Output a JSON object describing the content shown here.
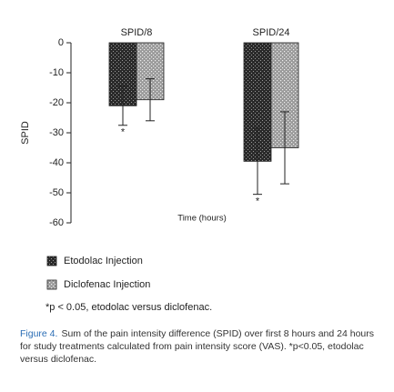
{
  "chart_data": {
    "type": "bar",
    "categories": [
      "SPID/8",
      "SPID/24"
    ],
    "series": [
      {
        "name": "Etodolac Injection",
        "color": "#3a3a3a",
        "values": [
          -21,
          -39.5
        ],
        "errors": [
          6.5,
          11
        ],
        "significance_labels": [
          "*",
          "*"
        ]
      },
      {
        "name": "Diclofenac Injection",
        "color": "#b0b0b0",
        "values": [
          -19,
          -35
        ],
        "errors": [
          7,
          12
        ]
      }
    ],
    "ylabel": "SPID",
    "xlabel": "Time (hours)",
    "ylim": [
      -60,
      0
    ],
    "yticks": [
      0,
      -10,
      -20,
      -30,
      -40,
      -50,
      -60
    ],
    "footnote": "*p < 0.05, etodolac versus diclofenac.",
    "caption": {
      "label": "Figure 4.",
      "text": "Sum of the pain intensity difference (SPID) over first 8 hours and 24 hours for study treatments calculated from pain intensity score (VAS). *p<0.05, etodolac versus diclofenac."
    }
  }
}
